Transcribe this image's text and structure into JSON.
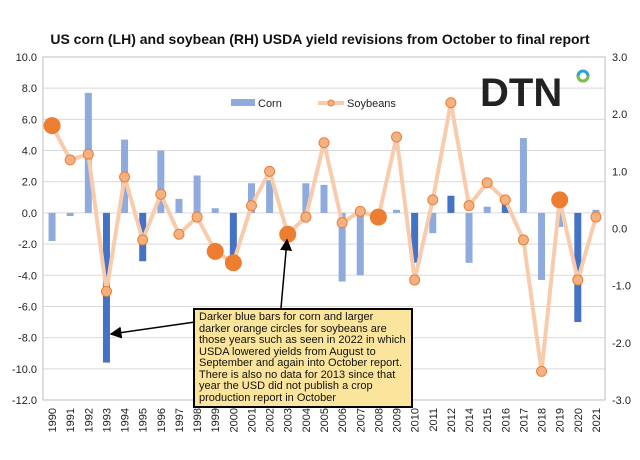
{
  "chart_data": {
    "type": "bar+line",
    "title": "US corn (LH) and soybean (RH) USDA yield revisions from October to final report",
    "categories": [
      "1990",
      "1991",
      "1992",
      "1993",
      "1994",
      "1995",
      "1996",
      "1997",
      "1998",
      "1999",
      "2000",
      "2001",
      "2002",
      "2003",
      "2004",
      "2005",
      "2006",
      "2007",
      "2008",
      "2009",
      "2010",
      "2011",
      "2012",
      "2014",
      "2015",
      "2016",
      "2017",
      "2018",
      "2019",
      "2020",
      "2021"
    ],
    "series": [
      {
        "name": "Corn",
        "type": "bar",
        "axis": "left",
        "color": "#8faadc",
        "highlight_color": "#4472c4",
        "values": [
          -1.8,
          -0.2,
          7.7,
          -9.6,
          4.7,
          -3.1,
          4.0,
          0.9,
          2.4,
          0.3,
          -3.2,
          1.9,
          2.1,
          0,
          1.9,
          1.8,
          -4.4,
          -4.0,
          0,
          0.2,
          -3.2,
          -1.3,
          1.1,
          -3.2,
          0.4,
          1.0,
          4.8,
          -4.3,
          -0.9,
          -7.0,
          0.2
        ],
        "highlighted": [
          "1993",
          "1995",
          "2000",
          "2010",
          "2012",
          "2016",
          "2020"
        ]
      },
      {
        "name": "Soybeans",
        "type": "line",
        "axis": "right",
        "color": "#f8cbad",
        "marker_color": "#f4b183",
        "highlight_color": "#ed7d31",
        "values": [
          1.8,
          1.2,
          1.3,
          -1.1,
          0.9,
          -0.2,
          0.6,
          -0.1,
          0.2,
          -0.4,
          -0.6,
          0.4,
          1.0,
          -0.1,
          0.2,
          1.5,
          0.1,
          0.3,
          0.2,
          1.6,
          -0.9,
          0.5,
          2.2,
          0.4,
          0.8,
          0.5,
          -0.2,
          -2.5,
          0.5,
          -0.9,
          0.2
        ],
        "highlighted": [
          "1990",
          "1999",
          "2000",
          "2003",
          "2008",
          "2019"
        ]
      }
    ],
    "left_axis": {
      "ylim": [
        -12,
        10
      ],
      "ticks": [
        "10.0",
        "8.0",
        "6.0",
        "4.0",
        "2.0",
        "0.0",
        "-2.0",
        "-4.0",
        "-6.0",
        "-8.0",
        "-10.0",
        "-12.0"
      ]
    },
    "right_axis": {
      "ylim": [
        -3,
        3
      ],
      "ticks": [
        "3.0",
        "2.0",
        "1.0",
        "0.0",
        "-1.0",
        "-2.0",
        "-3.0"
      ]
    },
    "legend": [
      "Corn",
      "Soybeans"
    ],
    "legend_position": "top-center",
    "grid": true,
    "annotation": "Darker blue bars for corn and larger darker orange circles for soybeans are those years such as seen in 2022 in which USDA lowered yields from August to September and again into October report. There is also no data for 2013 since that year the USD did not publish a crop production report in October"
  },
  "logo": "DTN"
}
